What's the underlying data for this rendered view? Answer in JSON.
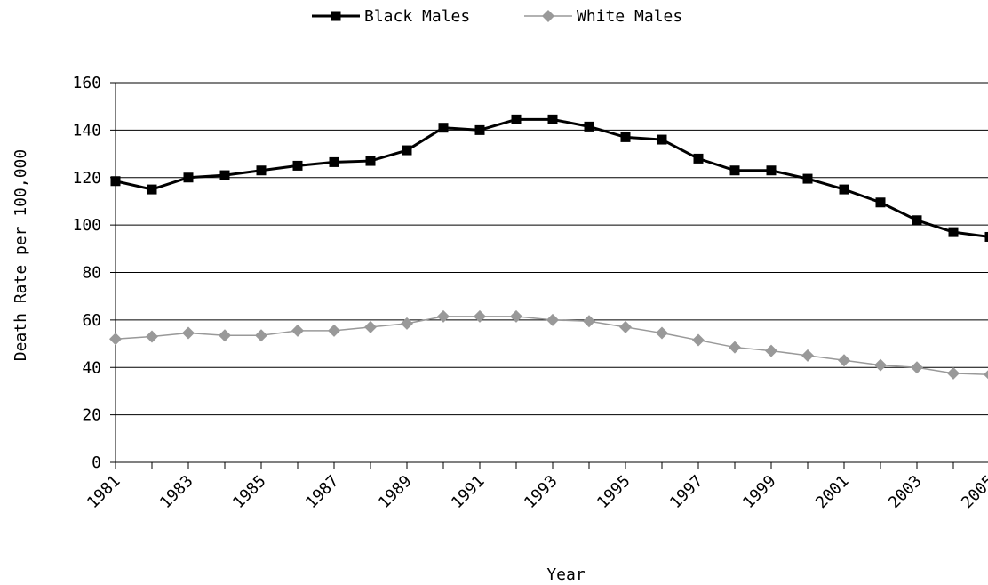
{
  "chart_data": {
    "type": "line",
    "title": "",
    "xlabel": "Year",
    "ylabel": "Death Rate per 100,000",
    "x": [
      1981,
      1982,
      1983,
      1984,
      1985,
      1986,
      1987,
      1988,
      1989,
      1990,
      1991,
      1992,
      1993,
      1994,
      1995,
      1996,
      1997,
      1998,
      1999,
      2000,
      2001,
      2002,
      2003,
      2004,
      2005
    ],
    "x_tick_labels": [
      "1981",
      "1983",
      "1985",
      "1987",
      "1989",
      "1991",
      "1993",
      "1995",
      "1997",
      "1999",
      "2001",
      "2003",
      "2005"
    ],
    "y_tick_labels": [
      "0",
      "20",
      "40",
      "60",
      "80",
      "100",
      "120",
      "140",
      "160"
    ],
    "ylim": [
      0,
      160
    ],
    "grid": "horizontal",
    "legend_position": "top",
    "series": [
      {
        "name": "Black Males",
        "color": "#000000",
        "marker": "square",
        "values": [
          118.5,
          115,
          120,
          121,
          123,
          125,
          126.5,
          127,
          131.5,
          141,
          140,
          144.5,
          144.5,
          141.5,
          137,
          136,
          128,
          123,
          123,
          119.5,
          115,
          109.5,
          102,
          97,
          95
        ]
      },
      {
        "name": "White Males",
        "color": "#999999",
        "marker": "diamond",
        "values": [
          52,
          53,
          54.5,
          53.5,
          53.5,
          55.5,
          55.5,
          57,
          58.5,
          61.5,
          61.5,
          61.5,
          60,
          59.5,
          57,
          54.5,
          51.5,
          48.5,
          47,
          45,
          43,
          41,
          40,
          37.5,
          37
        ]
      }
    ]
  }
}
